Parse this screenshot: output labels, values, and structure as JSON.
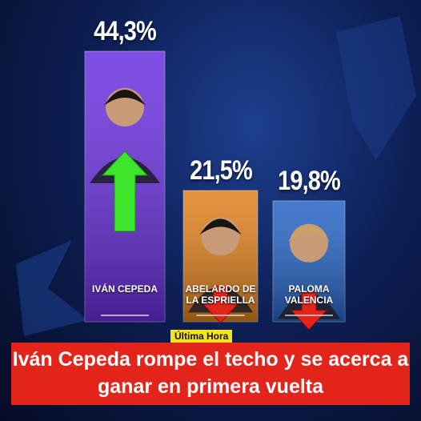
{
  "chart_data": {
    "type": "bar",
    "categories": [
      "IVÁN CEPEDA",
      "ABELARDO DE LA ESPRIELLA",
      "PALOMA VALENCIA"
    ],
    "values": [
      44.3,
      21.5,
      19.8
    ],
    "value_labels": [
      "44,3%",
      "21,5%",
      "19,8%"
    ],
    "colors": [
      "#6b2fe0",
      "#e0801c",
      "#2563c4"
    ]
  },
  "badge": "Última Hora",
  "headline": "Iván Cepeda rompe el techo y se acerca a ganar en primera vuelta"
}
